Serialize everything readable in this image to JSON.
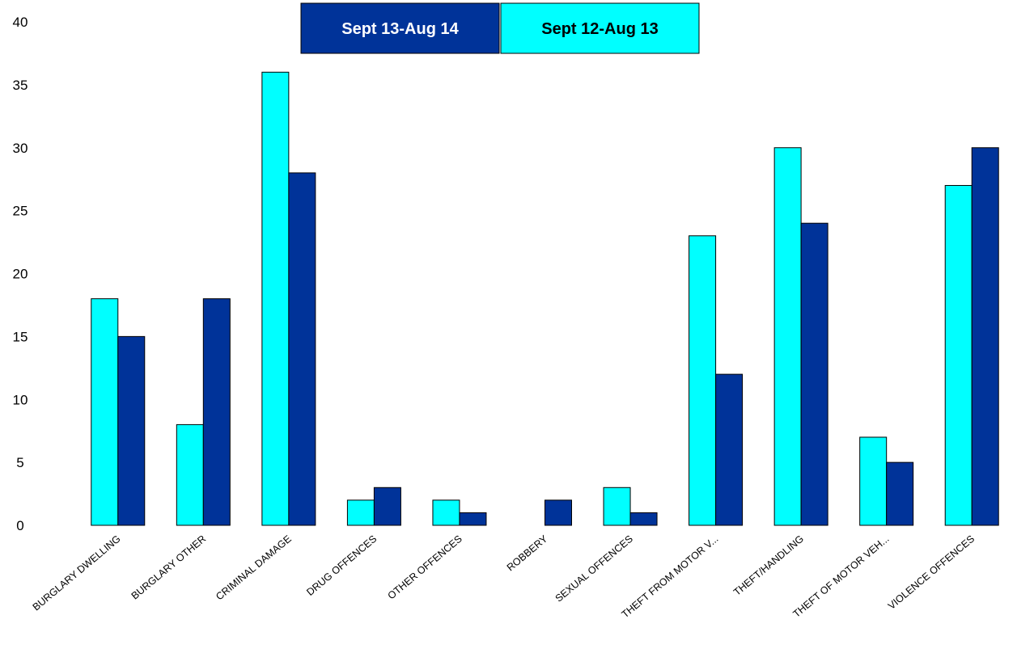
{
  "chart_data": {
    "type": "bar",
    "title": "",
    "xlabel": "",
    "ylabel": "",
    "ylim": [
      0,
      40
    ],
    "yticks": [
      0,
      5,
      10,
      15,
      20,
      25,
      30,
      35,
      40
    ],
    "grid": false,
    "legend_position": "top-center",
    "categories": [
      "BURGLARY DWELLING",
      "BURGLARY OTHER",
      "CRIMINAL DAMAGE",
      "DRUG OFFENCES",
      "OTHER OFFENCES",
      "ROBBERY",
      "SEXUAL OFFENCES",
      "THEFT FROM MOTOR V...",
      "THEFT/HANDLING",
      "THEFT OF MOTOR VEH...",
      "VIOLENCE OFFENCES"
    ],
    "series": [
      {
        "name": "Sept 12-Aug 13",
        "color": "#00FFFF",
        "text_color": "#000000",
        "values": [
          18,
          8,
          36,
          2,
          2,
          0,
          3,
          23,
          30,
          7,
          27
        ]
      },
      {
        "name": "Sept 13-Aug 14",
        "color": "#003399",
        "text_color": "#FFFFFF",
        "values": [
          15,
          18,
          28,
          3,
          1,
          2,
          1,
          12,
          24,
          5,
          30
        ]
      }
    ],
    "legend_order": [
      1,
      0
    ]
  }
}
